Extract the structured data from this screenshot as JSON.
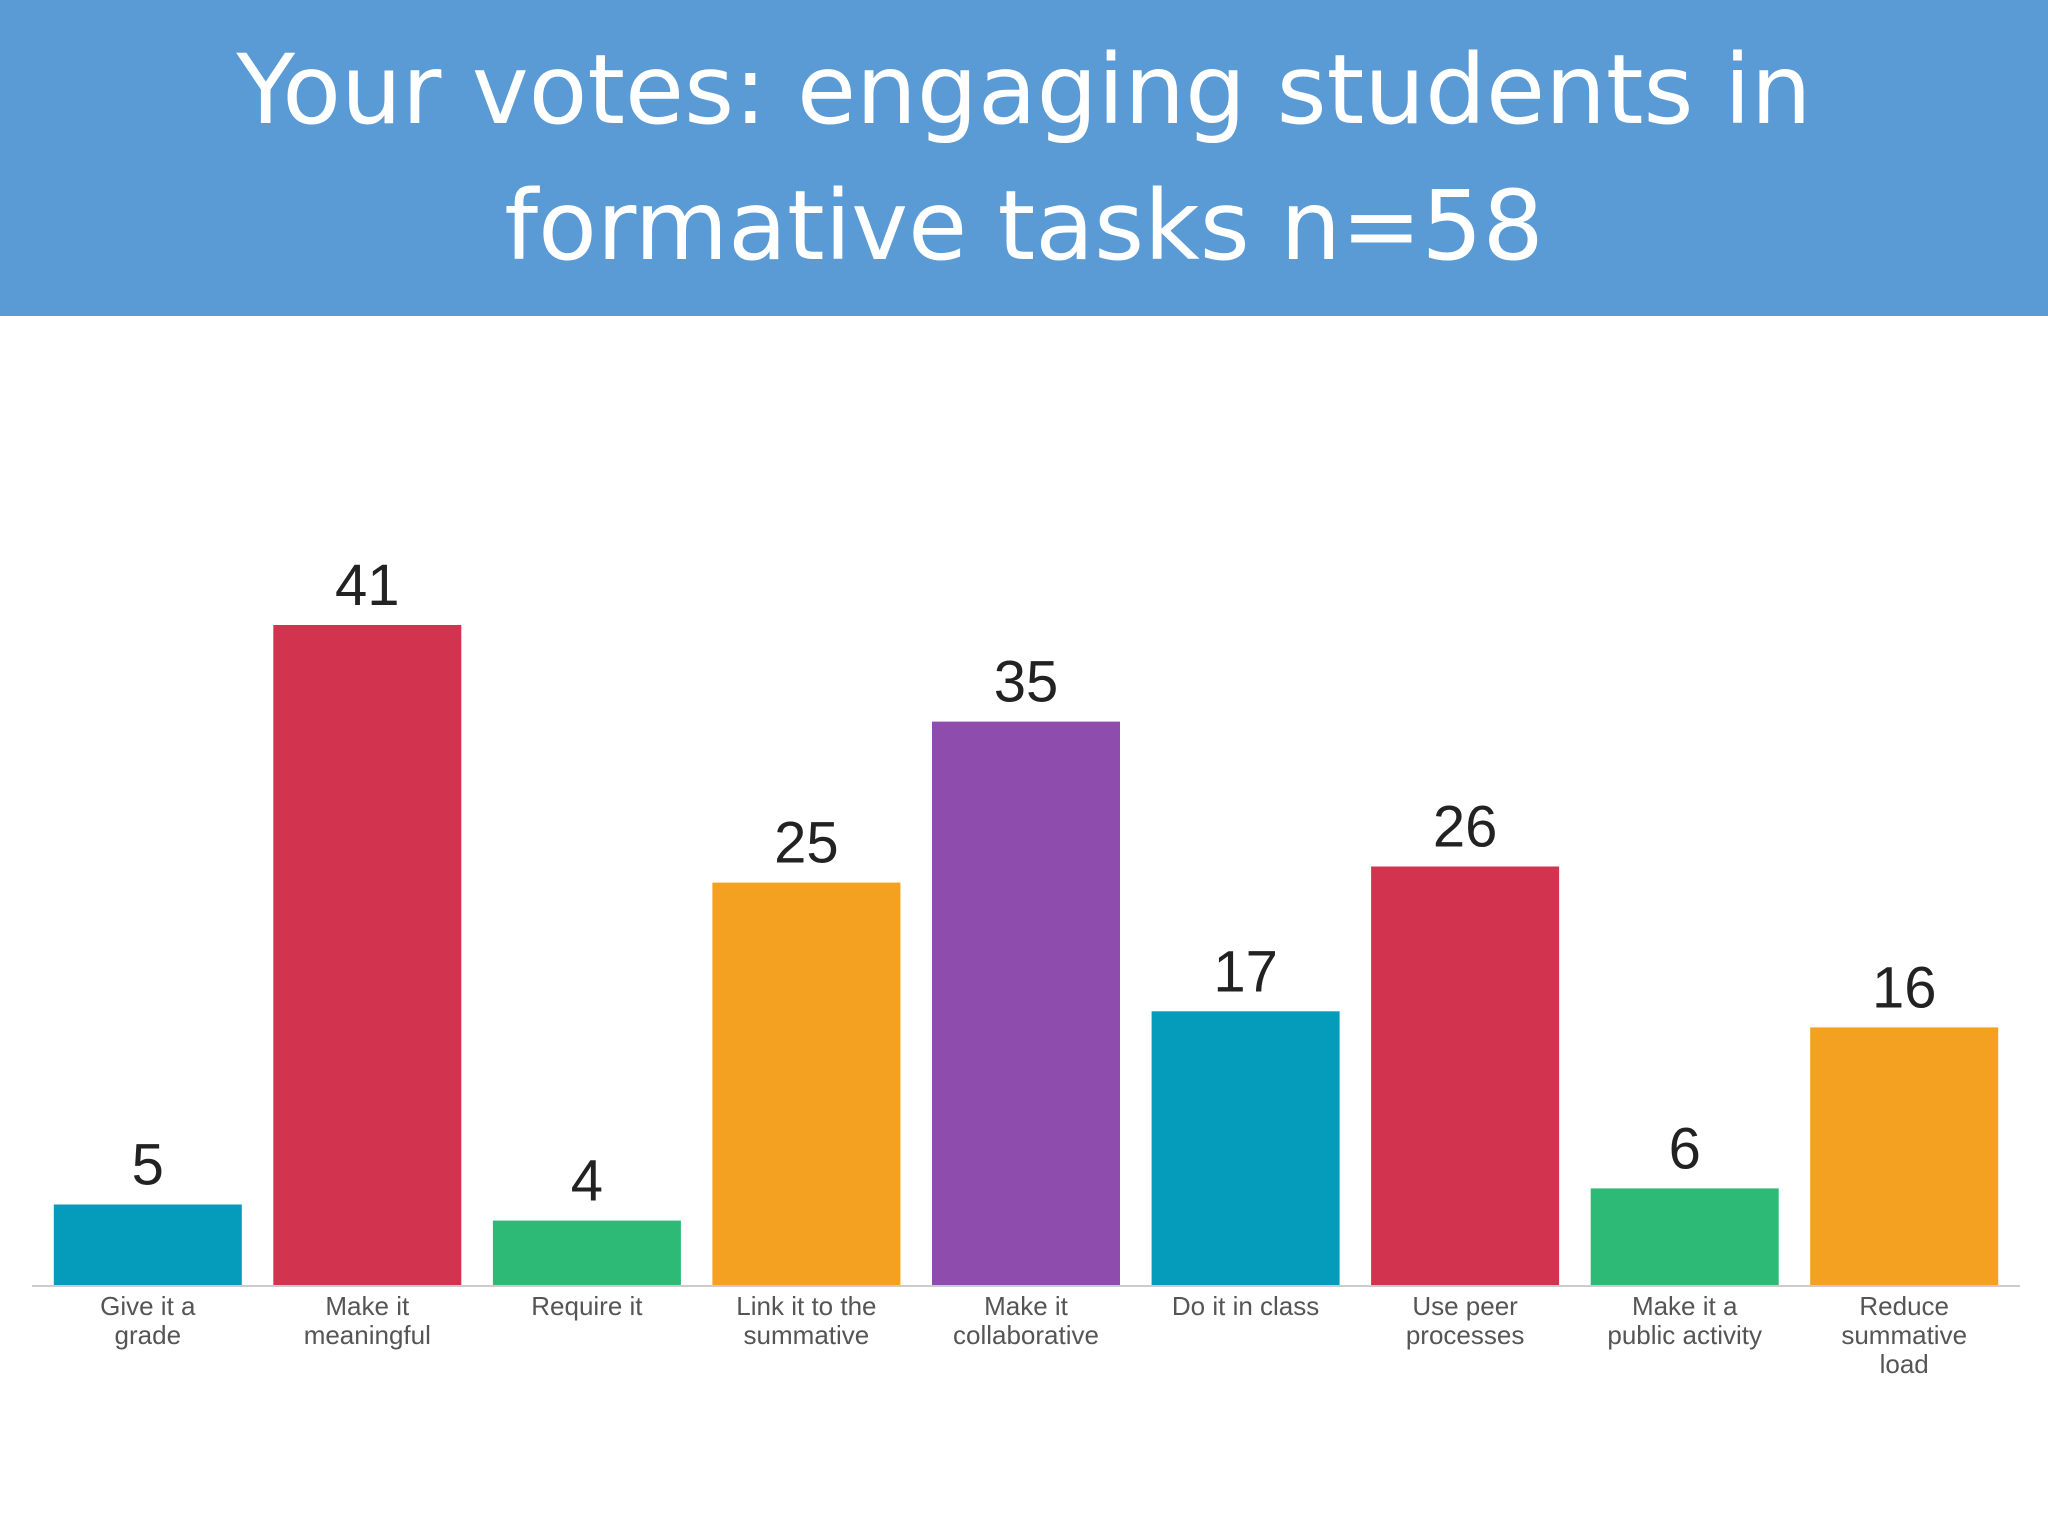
{
  "slide": {
    "title": "Your votes: engaging students in formative tasks n=58"
  },
  "chart_data": {
    "type": "bar",
    "title": "",
    "xlabel": "",
    "ylabel": "",
    "ylim": [
      0,
      41
    ],
    "grid": false,
    "categories": [
      [
        "Give it a",
        "grade"
      ],
      [
        "Make it",
        "meaningful"
      ],
      [
        "Require it"
      ],
      [
        "Link it to the",
        "summative"
      ],
      [
        "Make it",
        "collaborative"
      ],
      [
        "Do it in class"
      ],
      [
        "Use peer",
        "processes"
      ],
      [
        "Make it a",
        "public activity"
      ],
      [
        "Reduce",
        "summative",
        "load"
      ]
    ],
    "values": [
      5,
      41,
      4,
      25,
      35,
      17,
      26,
      6,
      16
    ],
    "colors": [
      "#059bbb",
      "#d2334f",
      "#2db976",
      "#f4a021",
      "#8e4dad",
      "#059bbb",
      "#d2334f",
      "#2db976",
      "#f4a021"
    ],
    "baseline_color": "#cccccc"
  }
}
